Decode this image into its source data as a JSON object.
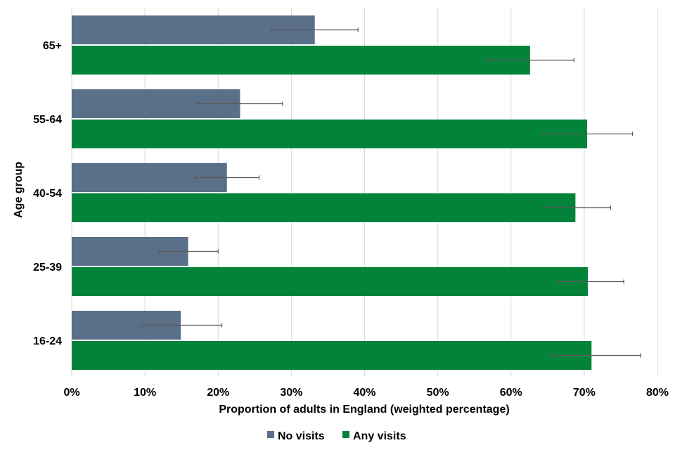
{
  "chart_data": {
    "type": "bar",
    "orientation": "horizontal",
    "categories": [
      "65+",
      "55-64",
      "40-54",
      "25-39",
      "16-24"
    ],
    "series": [
      {
        "name": "No visits",
        "color": "#5a7089",
        "values": [
          33.2,
          23.0,
          21.2,
          15.9,
          14.9
        ],
        "error_low": [
          27.3,
          17.1,
          16.8,
          11.9,
          9.5
        ],
        "error_high": [
          39.1,
          28.8,
          25.6,
          20.0,
          20.5
        ]
      },
      {
        "name": "Any visits",
        "color": "#03833a",
        "values": [
          62.6,
          70.4,
          68.8,
          70.5,
          71.0
        ],
        "error_low": [
          56.6,
          64.4,
          64.4,
          66.4,
          65.4
        ],
        "error_high": [
          68.6,
          76.6,
          73.6,
          75.4,
          77.7
        ]
      }
    ],
    "xlabel": "Proportion of adults in England (weighted percentage)",
    "ylabel": "Age group",
    "xlim": [
      0,
      80
    ],
    "xticks": [
      "0%",
      "10%",
      "20%",
      "30%",
      "40%",
      "50%",
      "60%",
      "70%",
      "80%"
    ],
    "grid": "vertical",
    "legend_position": "bottom",
    "error_bar_color": "#595959"
  }
}
